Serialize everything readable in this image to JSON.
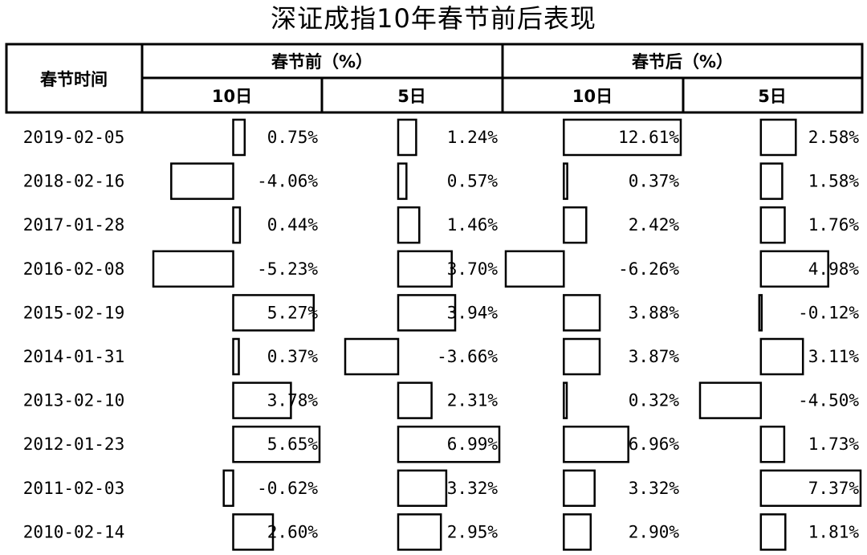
{
  "title": "深证成指10年春节前后表现",
  "header": {
    "row_label": "春节时间",
    "groups": [
      "春节前（%）",
      "春节后（%）"
    ],
    "periods": [
      "10日",
      "5日",
      "10日",
      "5日"
    ]
  },
  "chart_data": {
    "type": "table",
    "title": "深证成指10年春节前后表现",
    "columns": [
      "春节前 10日",
      "春节前 5日",
      "春节后 10日",
      "春节后 5日"
    ],
    "rows": [
      {
        "date": "2019-02-05",
        "values": [
          0.75,
          1.24,
          12.61,
          2.58
        ]
      },
      {
        "date": "2018-02-16",
        "values": [
          -4.06,
          0.57,
          0.37,
          1.58
        ]
      },
      {
        "date": "2017-01-28",
        "values": [
          0.44,
          1.46,
          2.42,
          1.76
        ]
      },
      {
        "date": "2016-02-08",
        "values": [
          -5.23,
          3.7,
          -6.26,
          4.98
        ]
      },
      {
        "date": "2015-02-19",
        "values": [
          5.27,
          3.94,
          3.88,
          -0.12
        ]
      },
      {
        "date": "2014-01-31",
        "values": [
          0.37,
          -3.66,
          3.87,
          3.11
        ]
      },
      {
        "date": "2013-02-10",
        "values": [
          3.78,
          2.31,
          0.32,
          -4.5
        ]
      },
      {
        "date": "2012-01-23",
        "values": [
          5.65,
          6.99,
          6.96,
          1.73
        ]
      },
      {
        "date": "2011-02-03",
        "values": [
          -0.62,
          3.32,
          3.32,
          7.37
        ]
      },
      {
        "date": "2010-02-14",
        "values": [
          2.6,
          2.95,
          2.9,
          1.81
        ]
      }
    ],
    "labels": [
      [
        "0.75%",
        "1.24%",
        "12.61%",
        "2.58%"
      ],
      [
        "-4.06%",
        "0.57%",
        "0.37%",
        "1.58%"
      ],
      [
        "0.44%",
        "1.46%",
        "2.42%",
        "1.76%"
      ],
      [
        "-5.23%",
        "3.70%",
        "-6.26%",
        "4.98%"
      ],
      [
        "5.27%",
        "3.94%",
        "3.88%",
        "-0.12%"
      ],
      [
        "0.37%",
        "-3.66%",
        "3.87%",
        "3.11%"
      ],
      [
        "3.78%",
        "2.31%",
        "0.32%",
        "-4.50%"
      ],
      [
        "5.65%",
        "6.99%",
        "6.96%",
        "1.73%"
      ],
      [
        "-0.62%",
        "3.32%",
        "3.32%",
        "7.37%"
      ],
      [
        "2.60%",
        "2.95%",
        "2.90%",
        "1.81%"
      ]
    ],
    "column_ranges": [
      [
        -5.23,
        5.65
      ],
      [
        -3.66,
        6.99
      ],
      [
        -6.26,
        12.61
      ],
      [
        -4.5,
        7.37
      ]
    ],
    "bar_style": "data bars, outlined, white fill"
  }
}
